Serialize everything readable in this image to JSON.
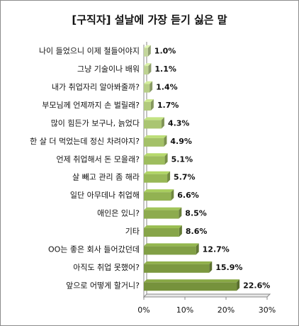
{
  "chart_data": {
    "type": "bar",
    "orientation": "horizontal",
    "title": "[구직자] 설날에 가장 듣기 싫은 말",
    "categories": [
      "나이 들었으니 이제 철들어야지",
      "그냥 기술이나 배워",
      "내가 취업자리 알아봐줄까?",
      "부모님께 언제까지 손 벌릴래?",
      "많이 힘든가 보구나, 늙었다",
      "한 살 더 먹었는데 정신 차려야지?",
      "언제 취업해서 돈 모을래?",
      "살 빼고 관리 좀 해라",
      "일단 아무데나 취업해",
      "애인은 있니?",
      "기타",
      "OO는 좋은 회사 들어갔던데",
      "아직도 취업 못했어?",
      "앞으로 어떻게 할거니?"
    ],
    "values": [
      1.0,
      1.1,
      1.4,
      1.7,
      4.3,
      4.9,
      5.1,
      5.7,
      6.6,
      8.5,
      8.6,
      12.7,
      15.9,
      22.6
    ],
    "value_labels": [
      "1.0%",
      "1.1%",
      "1.4%",
      "1.7%",
      "4.3%",
      "4.9%",
      "5.1%",
      "5.7%",
      "6.6%",
      "8.5%",
      "8.6%",
      "12.7%",
      "15.9%",
      "22.6%"
    ],
    "xlim": [
      0,
      30
    ],
    "xticks": [
      "0%",
      "10%",
      "20%",
      "30%"
    ],
    "grid": false,
    "legend": "none",
    "colors": {
      "light_face": "#c3d69b",
      "mid_face": "#9bbb59",
      "dark_face": "#76923c",
      "axis": "#888888"
    }
  }
}
